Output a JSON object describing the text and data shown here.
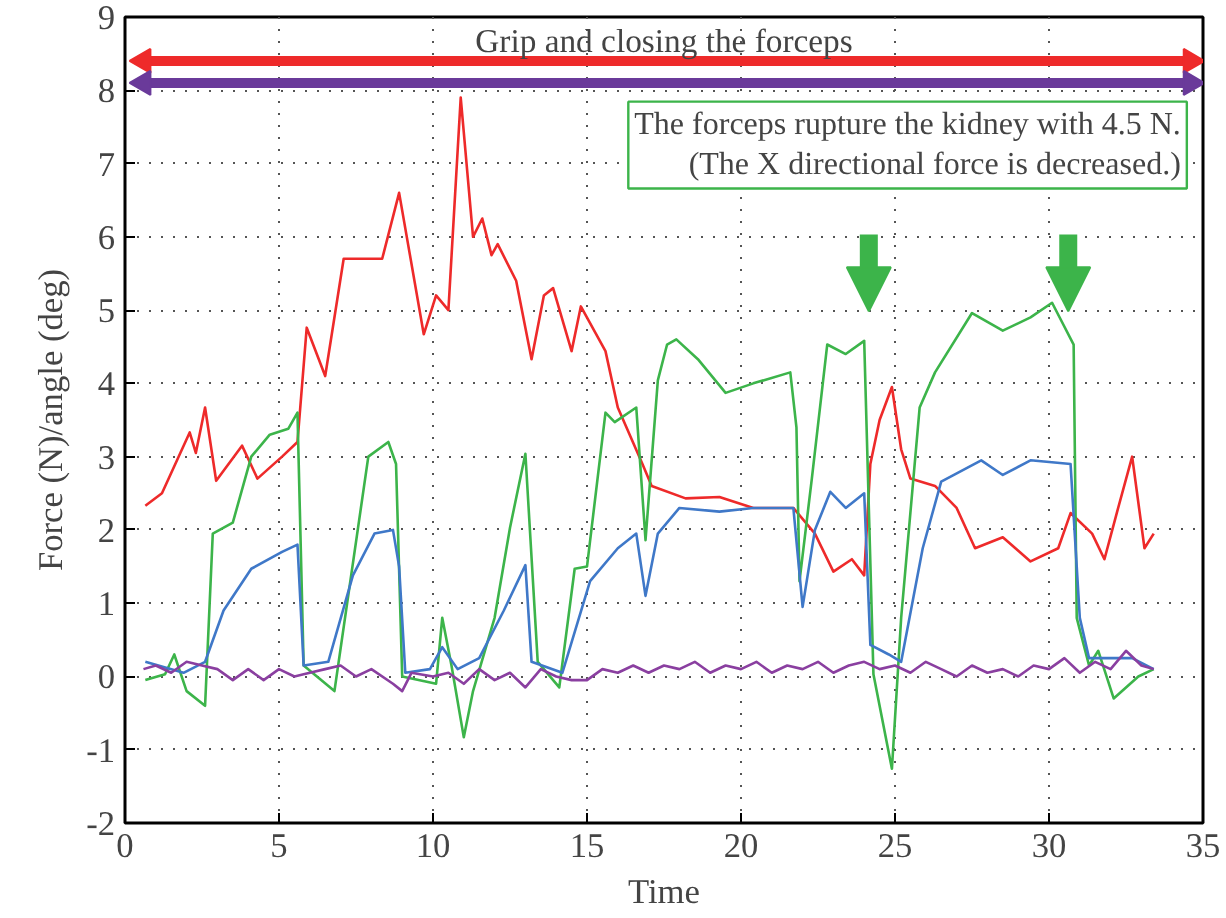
{
  "chart_data": {
    "type": "line",
    "xlabel": "Time",
    "ylabel": "Force (N)/angle (deg)",
    "xlim": [
      0,
      35
    ],
    "ylim": [
      -2,
      9
    ],
    "xticks": [
      0,
      5,
      10,
      15,
      20,
      25,
      30,
      35
    ],
    "yticks": [
      -2,
      -1,
      0,
      1,
      2,
      3,
      4,
      5,
      6,
      7,
      8,
      9
    ],
    "grid": true,
    "line_style": "solid",
    "annotations": [
      "Grip and closing the forceps",
      "The forceps rupture the kidney with 4.5 N.\n(The X directional force is decreased.)"
    ],
    "series": [
      {
        "type": "line",
        "marker": "triangle",
        "color": "#ee2a2a",
        "x": [
          0.6,
          34.6
        ],
        "values": [
          8.4,
          8.4
        ]
      },
      {
        "type": "line",
        "marker": "triangle",
        "color": "#6a3a9a",
        "x": [
          0.6,
          34.6
        ],
        "values": [
          8.1,
          8.1
        ]
      },
      {
        "color": "#ee2a2a",
        "x": [
          0.66,
          1.2,
          2.1,
          2.3,
          2.6,
          2.96,
          3.8,
          4.3,
          5.1,
          5.6,
          5.9,
          6.5,
          7.1,
          8.35,
          8.9,
          9.7,
          10.1,
          10.5,
          10.9,
          11.3,
          11.6,
          11.9,
          12.1,
          12.7,
          13.2,
          13.6,
          13.9,
          14.5,
          14.8,
          15.6,
          16.0,
          16.8,
          17.1,
          18.2,
          19.3,
          20.4,
          21.7,
          22.4,
          23.0,
          23.6,
          24.0,
          24.2,
          24.5,
          24.9,
          25.2,
          25.5,
          26.3,
          27.0,
          27.6,
          28.5,
          29.4,
          30.3,
          30.7,
          31.4,
          31.8,
          32.2,
          32.7,
          33.1,
          33.4
        ],
        "values": [
          2.33,
          2.5,
          3.33,
          3.05,
          3.67,
          2.67,
          3.15,
          2.7,
          3.0,
          3.2,
          4.76,
          4.1,
          5.7,
          5.7,
          6.6,
          4.67,
          5.2,
          5.0,
          7.9,
          6.0,
          6.25,
          5.75,
          5.9,
          5.4,
          4.33,
          5.2,
          5.3,
          4.44,
          5.05,
          4.44,
          3.67,
          2.9,
          2.6,
          2.43,
          2.45,
          2.3,
          2.3,
          1.95,
          1.43,
          1.6,
          1.38,
          2.9,
          3.5,
          3.95,
          3.1,
          2.7,
          2.6,
          2.3,
          1.75,
          1.9,
          1.57,
          1.75,
          2.23,
          1.95,
          1.6,
          2.23,
          3.0,
          1.75,
          1.95
        ]
      },
      {
        "color": "#3cb44a",
        "x": [
          0.66,
          1.3,
          1.6,
          2.0,
          2.6,
          2.85,
          3.5,
          4.1,
          4.7,
          5.3,
          5.6,
          5.8,
          6.8,
          7.9,
          8.55,
          8.8,
          9.0,
          10.1,
          10.3,
          10.6,
          11.0,
          11.3,
          12.0,
          12.5,
          13.0,
          13.4,
          14.1,
          14.6,
          15.0,
          15.6,
          15.9,
          16.6,
          16.9,
          17.3,
          17.6,
          17.9,
          18.6,
          19.5,
          20.4,
          21.6,
          21.8,
          21.9,
          22.3,
          22.8,
          23.4,
          24.0,
          24.3,
          24.9,
          25.2,
          25.8,
          26.3,
          27.5,
          28.5,
          29.4,
          30.1,
          30.8,
          30.9,
          31.3,
          31.6,
          32.1,
          32.9,
          33.4
        ],
        "values": [
          -0.05,
          0.03,
          0.3,
          -0.2,
          -0.4,
          1.95,
          2.1,
          3.0,
          3.3,
          3.38,
          3.6,
          0.15,
          -0.2,
          3.0,
          3.2,
          2.9,
          0.0,
          -0.1,
          0.8,
          0.15,
          -0.83,
          -0.2,
          0.8,
          2.03,
          3.04,
          0.2,
          -0.15,
          1.47,
          1.5,
          3.6,
          3.47,
          3.67,
          1.86,
          4.04,
          4.53,
          4.6,
          4.33,
          3.87,
          4.0,
          4.15,
          3.4,
          1.3,
          2.7,
          4.53,
          4.4,
          4.58,
          0.03,
          -1.26,
          0.8,
          3.67,
          4.15,
          4.96,
          4.72,
          4.9,
          5.1,
          4.53,
          0.8,
          0.15,
          0.35,
          -0.3,
          0.0,
          0.1
        ]
      },
      {
        "color": "#3f78c8",
        "x": [
          0.66,
          1.9,
          2.6,
          3.2,
          4.1,
          5.1,
          5.6,
          5.8,
          6.6,
          7.4,
          8.1,
          8.7,
          8.9,
          9.1,
          9.9,
          10.3,
          10.8,
          11.5,
          12.3,
          13.0,
          13.2,
          14.2,
          15.1,
          16.0,
          16.6,
          16.9,
          17.3,
          18.0,
          19.3,
          20.4,
          21.7,
          22.0,
          22.4,
          22.9,
          23.4,
          24.0,
          24.2,
          24.8,
          25.2,
          25.9,
          26.5,
          27.8,
          28.5,
          29.4,
          30.7,
          31.0,
          31.3,
          32.7,
          33.4
        ],
        "values": [
          0.2,
          0.05,
          0.2,
          0.9,
          1.47,
          1.7,
          1.8,
          0.15,
          0.2,
          1.38,
          1.95,
          2.0,
          1.5,
          0.05,
          0.1,
          0.4,
          0.1,
          0.25,
          0.9,
          1.52,
          0.2,
          0.05,
          1.3,
          1.75,
          1.95,
          1.1,
          1.95,
          2.3,
          2.25,
          2.3,
          2.3,
          0.95,
          2.0,
          2.52,
          2.3,
          2.5,
          0.43,
          0.3,
          0.2,
          1.75,
          2.66,
          2.95,
          2.75,
          2.95,
          2.9,
          0.8,
          0.25,
          0.25,
          0.1
        ]
      },
      {
        "color": "#8a3fa0",
        "x": [
          0.6,
          1.0,
          1.5,
          2.0,
          2.5,
          3.0,
          3.5,
          4.0,
          4.5,
          5.0,
          5.5,
          6.0,
          6.5,
          7.0,
          7.5,
          8.0,
          8.7,
          9.0,
          9.3,
          10.0,
          10.5,
          11.0,
          11.5,
          12.0,
          12.5,
          13.0,
          13.5,
          14.0,
          14.5,
          15.0,
          15.5,
          16.0,
          16.5,
          17.0,
          17.5,
          18.0,
          18.5,
          19.0,
          19.5,
          20.0,
          20.5,
          21.0,
          21.5,
          22.0,
          22.5,
          23.0,
          23.5,
          24.0,
          24.5,
          25.0,
          25.5,
          26.0,
          26.5,
          27.0,
          27.5,
          28.0,
          28.5,
          29.0,
          29.5,
          30.0,
          30.5,
          31.0,
          31.5,
          32.0,
          32.5,
          33.0,
          33.4
        ],
        "values": [
          0.1,
          0.15,
          0.05,
          0.2,
          0.15,
          0.1,
          -0.05,
          0.1,
          -0.05,
          0.1,
          0.0,
          0.05,
          0.1,
          0.15,
          0.0,
          0.1,
          -0.1,
          -0.2,
          0.05,
          0.0,
          0.05,
          -0.1,
          0.1,
          -0.05,
          0.05,
          -0.15,
          0.1,
          0.0,
          -0.05,
          -0.05,
          0.1,
          0.05,
          0.15,
          0.05,
          0.15,
          0.1,
          0.2,
          0.05,
          0.15,
          0.1,
          0.2,
          0.05,
          0.15,
          0.1,
          0.2,
          0.05,
          0.15,
          0.2,
          0.1,
          0.15,
          0.05,
          0.2,
          0.1,
          0.0,
          0.15,
          0.05,
          0.1,
          0.0,
          0.15,
          0.1,
          0.25,
          0.05,
          0.2,
          0.1,
          0.35,
          0.15,
          0.1
        ]
      }
    ]
  }
}
